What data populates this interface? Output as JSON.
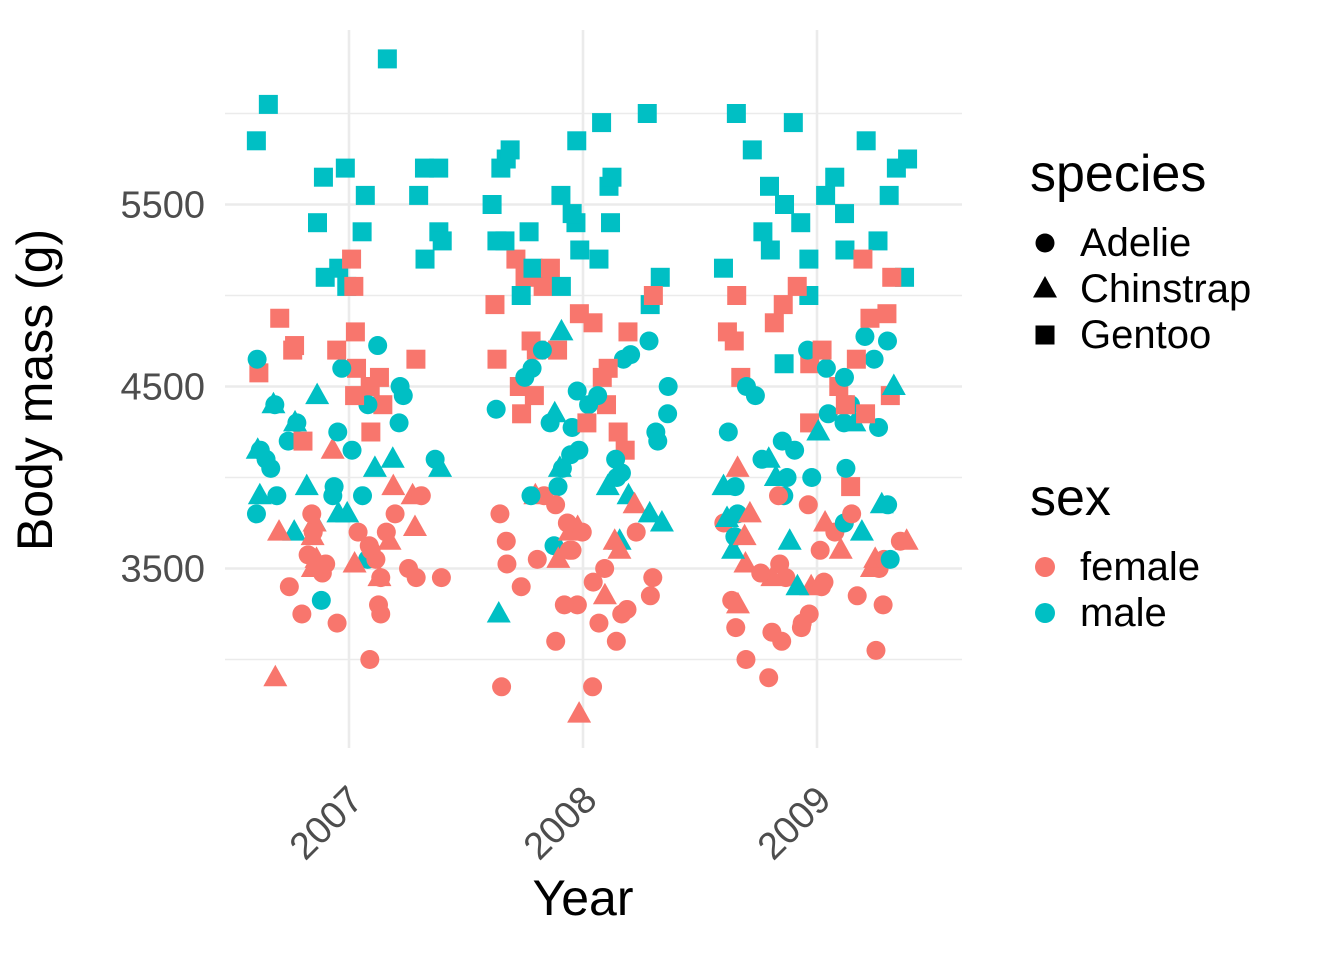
{
  "figure": {
    "background": "#ffffff",
    "grid_color": "#ebebeb",
    "tick_label_color": "#4d4d4d",
    "axis_title_color": "#000000"
  },
  "legend": {
    "species": {
      "title": "species",
      "items": [
        {
          "label": "Adelie",
          "shape": "circle",
          "glyph": "●",
          "color": "#000000"
        },
        {
          "label": "Chinstrap",
          "shape": "triangle",
          "glyph": "▲",
          "color": "#000000"
        },
        {
          "label": "Gentoo",
          "shape": "square",
          "glyph": "■",
          "color": "#000000"
        }
      ]
    },
    "sex": {
      "title": "sex",
      "items": [
        {
          "label": "female",
          "shape": "circle",
          "glyph": "●",
          "color": "#F8766D"
        },
        {
          "label": "male",
          "shape": "circle",
          "glyph": "●",
          "color": "#00BFC4"
        }
      ]
    }
  },
  "chart_data": {
    "type": "scatter",
    "title": "",
    "xlabel": "Year",
    "ylabel": "Body mass (g)",
    "x_ticks": [
      2007,
      2008,
      2009
    ],
    "y_ticks": [
      3500,
      4500,
      5500
    ],
    "y_minor_ticks": [
      3000,
      4000,
      5000,
      6000
    ],
    "ylim": [
      2550,
      6450
    ],
    "grid": "on",
    "legend_position": "right",
    "jitter_width": 0.4,
    "point_style": {
      "shape_by": "species",
      "color_by": "sex"
    },
    "colors": {
      "female": "#F8766D",
      "male": "#00BFC4"
    },
    "shapes": {
      "Adelie": "circle",
      "Chinstrap": "triangle",
      "Gentoo": "square"
    },
    "groups": [
      {
        "year": 2007,
        "species": "Adelie",
        "sex": "female",
        "body_mass_g": [
          3800,
          3250,
          3450,
          3625,
          3200,
          3700,
          3525,
          3475,
          3400,
          3600,
          3800,
          3900,
          3250,
          3300,
          3700,
          3450,
          3500,
          3450,
          3550,
          3000,
          3575,
          3700
        ]
      },
      {
        "year": 2007,
        "species": "Adelie",
        "sex": "male",
        "body_mass_g": [
          4100,
          3900,
          4200,
          4400,
          4150,
          3900,
          4650,
          3325,
          4400,
          4500,
          4300,
          4450,
          3950,
          3900,
          4150,
          3550,
          4300,
          4100,
          4725,
          4250,
          3800,
          4600,
          4050
        ]
      },
      {
        "year": 2007,
        "species": "Chinstrap",
        "sex": "female",
        "body_mass_g": [
          3500,
          3900,
          3650,
          3525,
          3725,
          3950,
          2900,
          3750,
          4150,
          3700,
          3550,
          3675,
          3450
        ]
      },
      {
        "year": 2007,
        "species": "Chinstrap",
        "sex": "male",
        "body_mass_g": [
          3750,
          4400,
          3800,
          4050,
          3800,
          3950,
          4100,
          4450,
          3900,
          4150,
          3700,
          4300,
          4050
        ]
      },
      {
        "year": 2007,
        "species": "Gentoo",
        "sex": "female",
        "body_mass_g": [
          4500,
          4450,
          4550,
          4800,
          4400,
          4650,
          4250,
          4600,
          4700,
          4200,
          5200,
          4700,
          4575,
          4725,
          5050,
          4875
        ]
      },
      {
        "year": 2007,
        "species": "Gentoo",
        "sex": "male",
        "body_mass_g": [
          5700,
          5700,
          5400,
          5200,
          5150,
          5550,
          5850,
          5300,
          5350,
          6050,
          6300,
          5350,
          5700,
          5050,
          5100,
          5650,
          5550
        ]
      },
      {
        "year": 2008,
        "species": "Adelie",
        "sex": "female",
        "body_mass_g": [
          2850,
          2850,
          3100,
          3200,
          3250,
          3300,
          3300,
          3350,
          3400,
          3425,
          3450,
          3500,
          3525,
          3550,
          3600,
          3600,
          3650,
          3700,
          3700,
          3750,
          3800,
          3850,
          3900,
          3100,
          3275
        ]
      },
      {
        "year": 2008,
        "species": "Adelie",
        "sex": "male",
        "body_mass_g": [
          3625,
          4000,
          4100,
          4250,
          4300,
          4350,
          4400,
          4450,
          4500,
          4550,
          4600,
          4650,
          4700,
          4750,
          3950,
          4050,
          4150,
          4200,
          4275,
          4375,
          4475,
          3900,
          4025,
          4125,
          4675
        ]
      },
      {
        "year": 2008,
        "species": "Chinstrap",
        "sex": "female",
        "body_mass_g": [
          2700,
          3350,
          3550,
          3600,
          3650,
          3700,
          3725,
          3850,
          3900
        ]
      },
      {
        "year": 2008,
        "species": "Chinstrap",
        "sex": "male",
        "body_mass_g": [
          3250,
          3650,
          3750,
          3800,
          3900,
          3950,
          4050,
          4350,
          4800
        ]
      },
      {
        "year": 2008,
        "species": "Gentoo",
        "sex": "female",
        "body_mass_g": [
          4150,
          4250,
          4300,
          4350,
          4400,
          4450,
          4500,
          4550,
          4600,
          4650,
          4700,
          4700,
          4750,
          4800,
          4850,
          4900,
          4950,
          5000,
          5050,
          5100,
          5150,
          5200
        ]
      },
      {
        "year": 2008,
        "species": "Gentoo",
        "sex": "male",
        "body_mass_g": [
          4950,
          5000,
          5050,
          5100,
          5150,
          5200,
          5250,
          5300,
          5350,
          5400,
          5450,
          5500,
          5550,
          5600,
          5650,
          5700,
          5750,
          5800,
          5850,
          5950,
          6000,
          5400,
          5300
        ]
      },
      {
        "year": 2009,
        "species": "Adelie",
        "sex": "female",
        "body_mass_g": [
          2900,
          3000,
          3050,
          3100,
          3150,
          3175,
          3200,
          3250,
          3300,
          3325,
          3350,
          3400,
          3425,
          3450,
          3475,
          3500,
          3525,
          3550,
          3600,
          3650,
          3700,
          3750,
          3800,
          3850,
          3900,
          3175
        ]
      },
      {
        "year": 2009,
        "species": "Adelie",
        "sex": "male",
        "body_mass_g": [
          3550,
          3675,
          3750,
          3800,
          3850,
          3900,
          3950,
          4000,
          4050,
          4100,
          4150,
          4200,
          4250,
          4300,
          4350,
          4400,
          4450,
          4500,
          4550,
          4600,
          4650,
          4700,
          4750,
          4775,
          4000,
          4275
        ]
      },
      {
        "year": 2009,
        "species": "Chinstrap",
        "sex": "female",
        "body_mass_g": [
          3300,
          3400,
          3450,
          3500,
          3525,
          3550,
          3600,
          3650,
          3675,
          3750,
          3800,
          4050
        ]
      },
      {
        "year": 2009,
        "species": "Chinstrap",
        "sex": "male",
        "body_mass_g": [
          3400,
          3600,
          3650,
          3700,
          3775,
          3850,
          3950,
          4000,
          4100,
          4250,
          4300,
          4500
        ]
      },
      {
        "year": 2009,
        "species": "Gentoo",
        "sex": "female",
        "body_mass_g": [
          3950,
          4300,
          4350,
          4400,
          4450,
          4500,
          4550,
          4625,
          4650,
          4700,
          4750,
          4800,
          4850,
          4875,
          4900,
          4950,
          5000,
          5050,
          5100,
          5200
        ]
      },
      {
        "year": 2009,
        "species": "Gentoo",
        "sex": "male",
        "body_mass_g": [
          4625,
          5000,
          5100,
          5150,
          5200,
          5250,
          5300,
          5350,
          5400,
          5450,
          5500,
          5550,
          5550,
          5600,
          5650,
          5700,
          5750,
          5800,
          5850,
          5950,
          6000,
          5250
        ]
      }
    ]
  }
}
